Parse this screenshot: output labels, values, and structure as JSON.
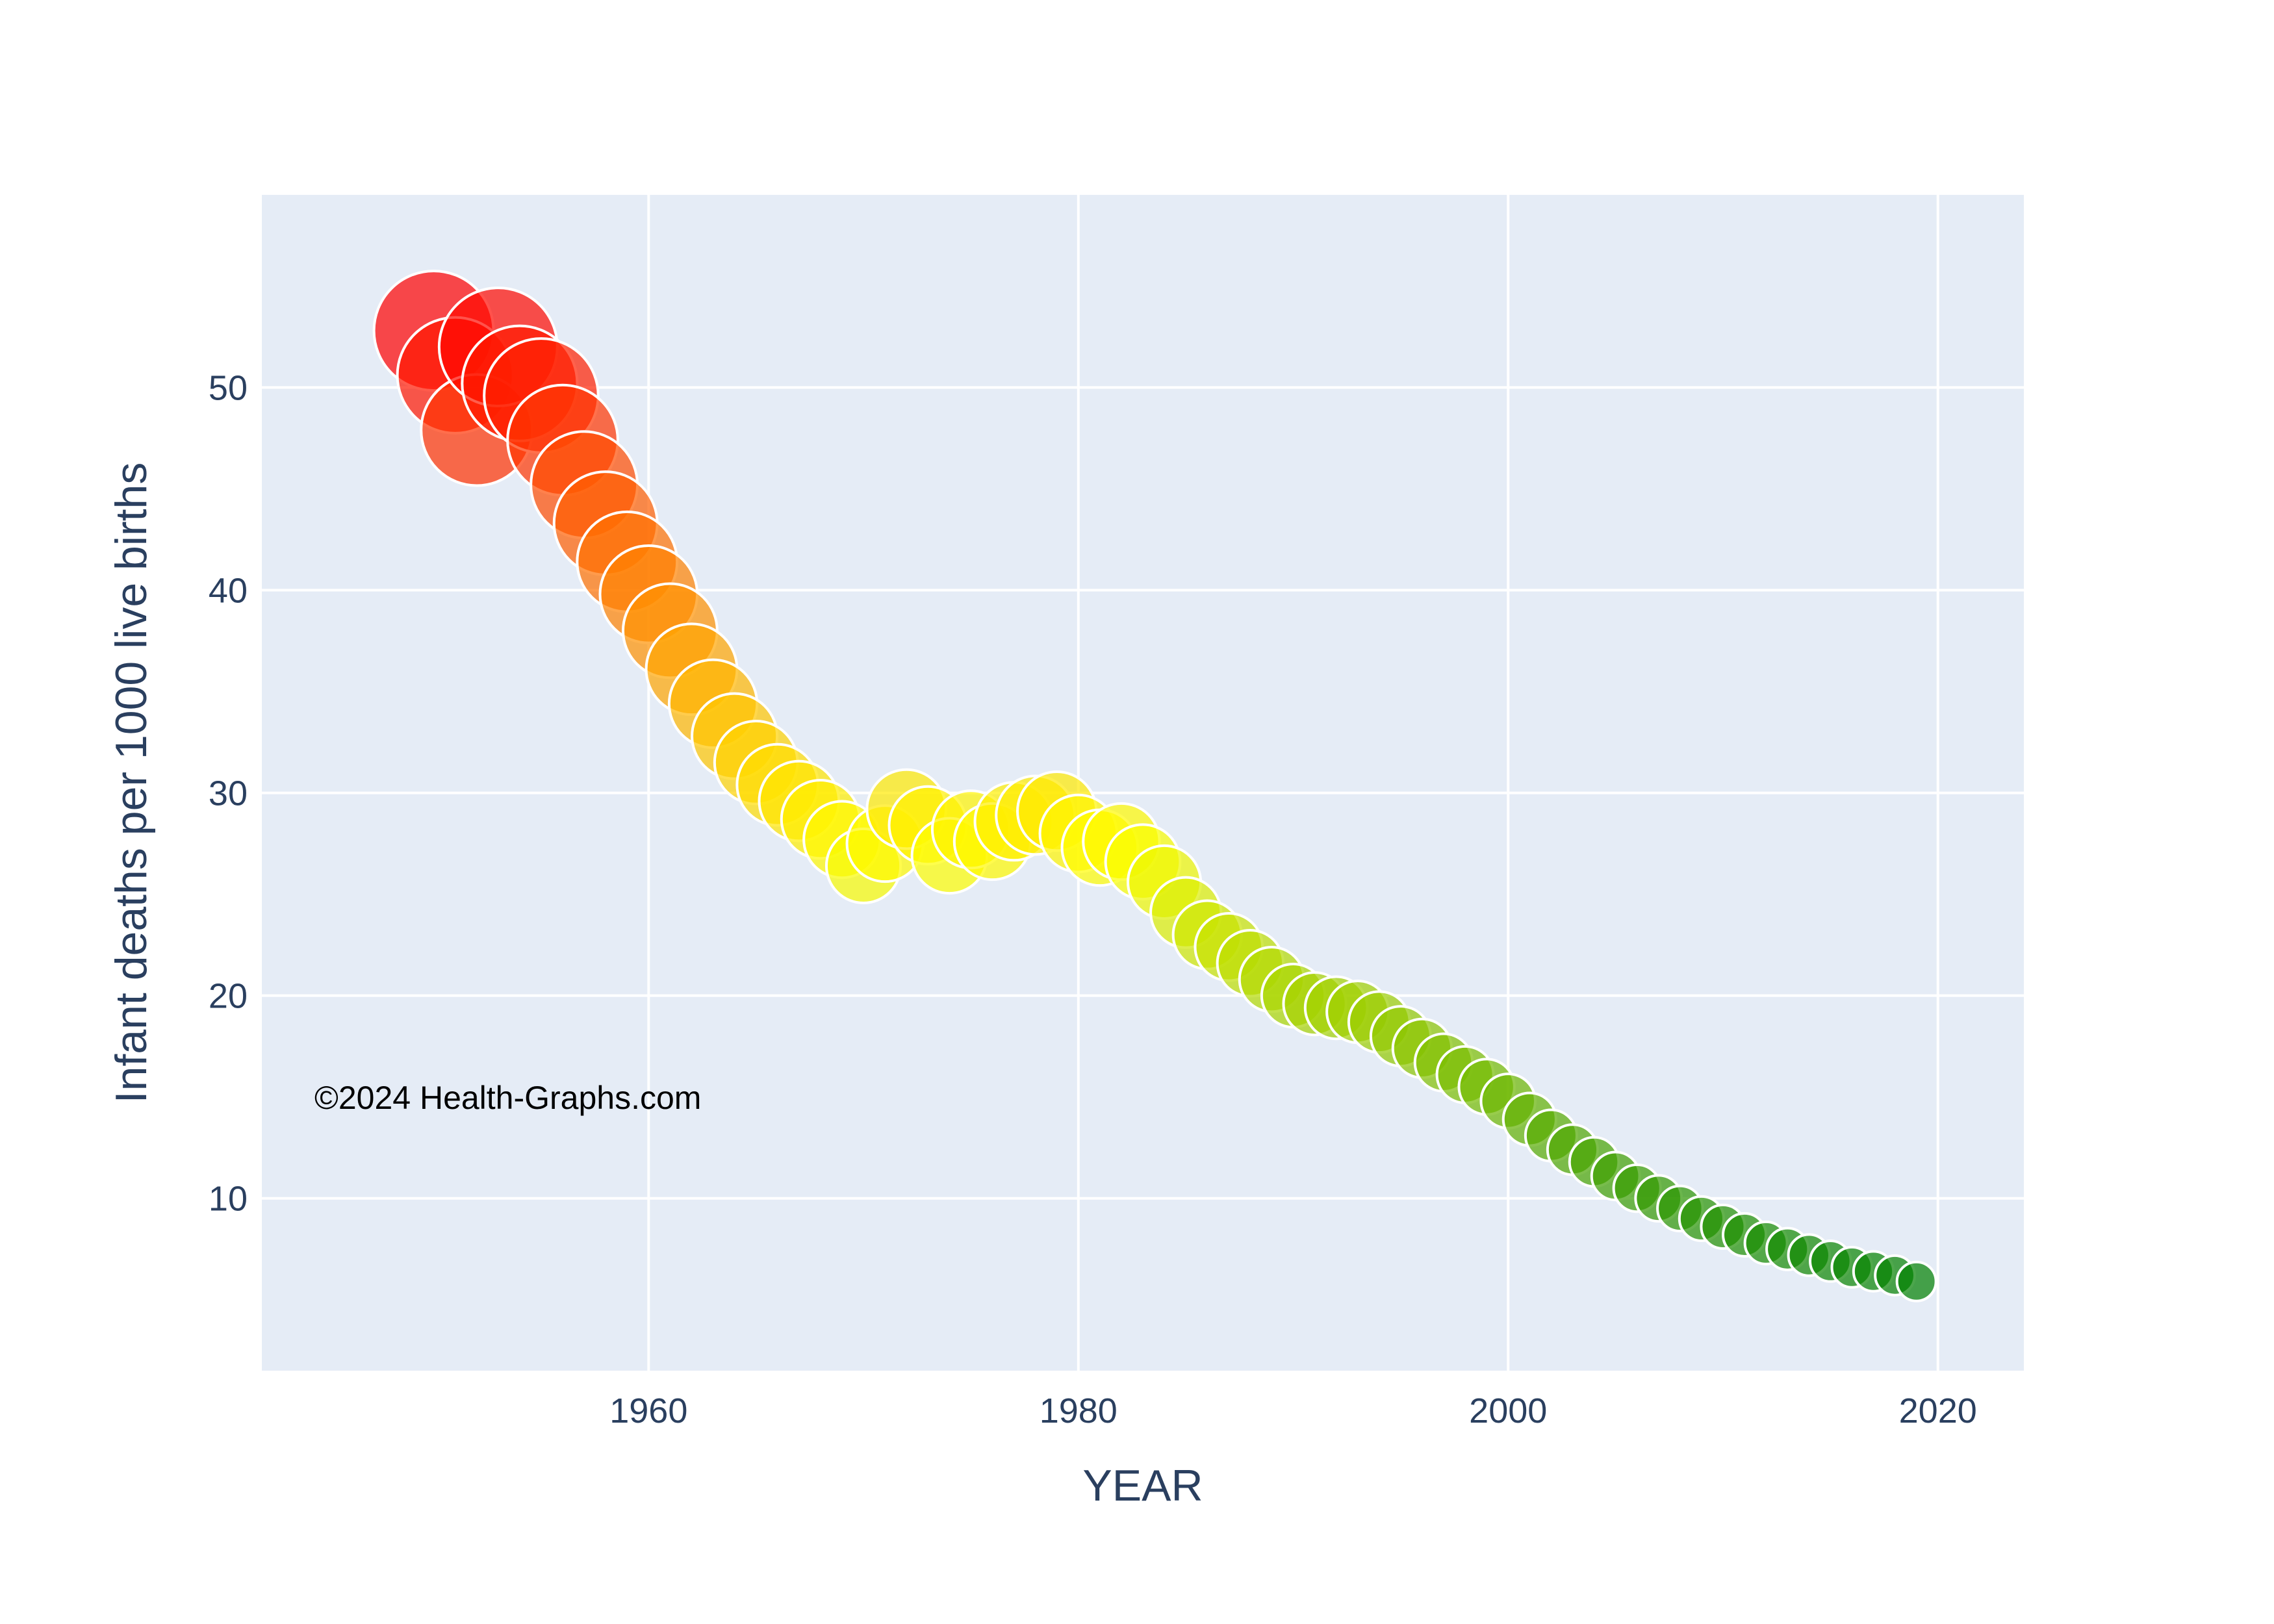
{
  "chart_data": {
    "type": "scatter",
    "title": "",
    "xlabel": "YEAR",
    "ylabel": "Infant deaths per 1000 live births",
    "xlim": [
      1942,
      2024
    ],
    "ylim": [
      1.5,
      59.5
    ],
    "xticks": [
      1960,
      1980,
      2000,
      2020
    ],
    "yticks": [
      10,
      20,
      30,
      40,
      50
    ],
    "grid": true,
    "legend": "none",
    "annotation": "©2024 Health-Graphs.com",
    "marker_color_scale": "red (high) to yellow to green (low)",
    "marker_size_encodes": "infant deaths per 1000 live births",
    "colors": {
      "plot_background": "#e5ecf6",
      "grid": "#ffffff",
      "high": "#ff0000",
      "mid": "#ffff00",
      "low": "#008000"
    },
    "series": [
      {
        "x": [
          1950,
          1951,
          1952,
          1953,
          1954,
          1955,
          1956,
          1957,
          1958,
          1959,
          1960,
          1961,
          1962,
          1963,
          1964,
          1965,
          1966,
          1967,
          1968,
          1969,
          1970,
          1971,
          1972,
          1973,
          1974,
          1975,
          1976,
          1977,
          1978,
          1979,
          1980,
          1981,
          1982,
          1983,
          1984,
          1985,
          1986,
          1987,
          1988,
          1989,
          1990,
          1991,
          1992,
          1993,
          1994,
          1995,
          1996,
          1997,
          1998,
          1999,
          2000,
          2001,
          2002,
          2003,
          2004,
          2005,
          2006,
          2007,
          2008,
          2009,
          2010,
          2011,
          2012,
          2013,
          2014,
          2015,
          2016,
          2017,
          2018,
          2019
        ],
        "y": [
          52.8,
          50.6,
          47.9,
          52.0,
          50.2,
          49.6,
          47.4,
          45.2,
          43.3,
          41.4,
          39.8,
          38.0,
          36.1,
          34.4,
          32.8,
          31.5,
          30.4,
          29.6,
          28.7,
          27.7,
          26.4,
          27.5,
          29.2,
          28.4,
          26.9,
          28.2,
          27.6,
          28.6,
          28.9,
          29.1,
          28.0,
          27.3,
          27.6,
          26.6,
          25.6,
          24.1,
          23.0,
          22.4,
          21.6,
          20.8,
          20.0,
          19.6,
          19.4,
          19.2,
          18.7,
          18.0,
          17.4,
          16.7,
          16.1,
          15.5,
          14.8,
          13.9,
          13.1,
          12.4,
          11.8,
          11.1,
          10.5,
          10.0,
          9.5,
          9.0,
          8.6,
          8.2,
          7.8,
          7.5,
          7.2,
          6.9,
          6.6,
          6.4,
          6.2,
          5.9
        ]
      }
    ]
  }
}
